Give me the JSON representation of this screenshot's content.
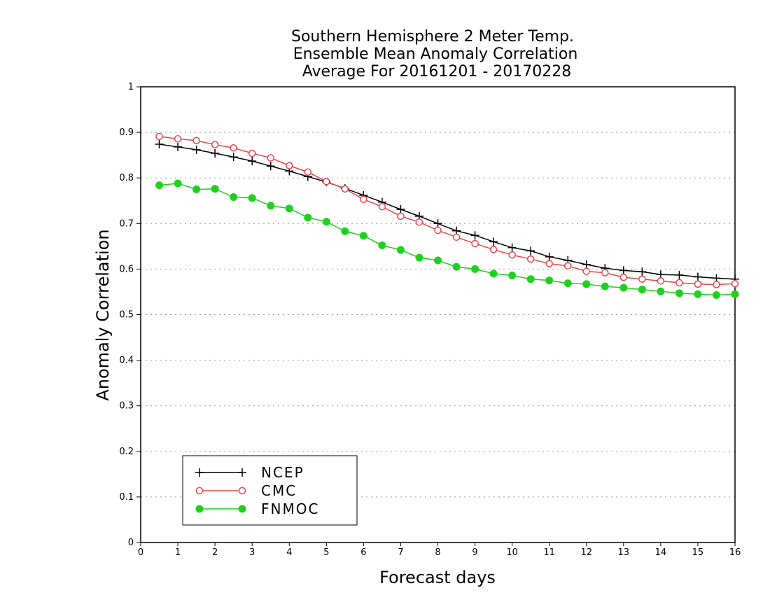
{
  "chart_data": {
    "type": "line",
    "title_lines": [
      "Southern Hemisphere 2 Meter Temp.",
      "Ensemble Mean Anomaly Correlation",
      "Average For 20161201 - 20170228"
    ],
    "xlabel": "Forecast days",
    "ylabel": "Anomaly Correlation",
    "xlim": [
      0,
      16
    ],
    "ylim": [
      0,
      1
    ],
    "xticks": [
      0,
      1,
      2,
      3,
      4,
      5,
      6,
      7,
      8,
      9,
      10,
      11,
      12,
      13,
      14,
      15,
      16
    ],
    "yticks": [
      0,
      0.1,
      0.2,
      0.3,
      0.4,
      0.5,
      0.6,
      0.7,
      0.8,
      0.9,
      1
    ],
    "ytick_labels": [
      "0",
      "0.1",
      "0.2",
      "0.3",
      "0.4",
      "0.5",
      "0.6",
      "0.7",
      "0.8",
      "0.9",
      "1"
    ],
    "grid": "horizontal-dotted",
    "legend_position": "bottom-left",
    "x": [
      0.5,
      1,
      1.5,
      2,
      2.5,
      3,
      3.5,
      4,
      4.5,
      5,
      5.5,
      6,
      6.5,
      7,
      7.5,
      8,
      8.5,
      9,
      9.5,
      10,
      10.5,
      11,
      11.5,
      12,
      12.5,
      13,
      13.5,
      14,
      14.5,
      15,
      15.5,
      16
    ],
    "series": [
      {
        "name": "NCEP",
        "color": "#000000",
        "marker": "plus",
        "values": [
          0.874,
          0.868,
          0.862,
          0.854,
          0.846,
          0.837,
          0.826,
          0.815,
          0.803,
          0.791,
          0.777,
          0.762,
          0.747,
          0.731,
          0.716,
          0.7,
          0.684,
          0.674,
          0.66,
          0.647,
          0.64,
          0.627,
          0.619,
          0.61,
          0.602,
          0.597,
          0.594,
          0.588,
          0.587,
          0.583,
          0.58,
          0.578
        ]
      },
      {
        "name": "CMC",
        "color": "#e8454a",
        "marker": "open-circle",
        "values": [
          0.891,
          0.886,
          0.882,
          0.873,
          0.866,
          0.854,
          0.844,
          0.827,
          0.813,
          0.792,
          0.776,
          0.753,
          0.737,
          0.716,
          0.703,
          0.685,
          0.67,
          0.656,
          0.643,
          0.631,
          0.622,
          0.612,
          0.607,
          0.595,
          0.592,
          0.582,
          0.578,
          0.574,
          0.57,
          0.567,
          0.566,
          0.568
        ]
      },
      {
        "name": "FNMOC",
        "color": "#1fd01f",
        "marker": "filled-circle",
        "values": [
          0.784,
          0.788,
          0.775,
          0.776,
          0.758,
          0.756,
          0.739,
          0.733,
          0.713,
          0.704,
          0.683,
          0.673,
          0.652,
          0.642,
          0.625,
          0.619,
          0.605,
          0.6,
          0.59,
          0.586,
          0.578,
          0.575,
          0.569,
          0.567,
          0.562,
          0.559,
          0.555,
          0.551,
          0.547,
          0.545,
          0.543,
          0.545
        ]
      }
    ]
  }
}
